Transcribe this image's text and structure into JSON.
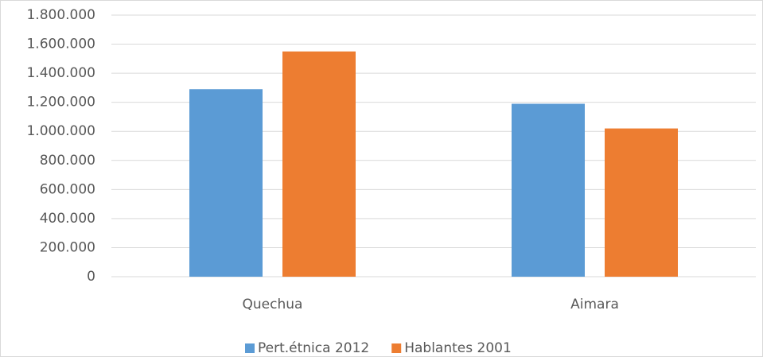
{
  "chart_data": {
    "type": "bar",
    "categories": [
      "Quechua",
      "Aimara"
    ],
    "series": [
      {
        "name": "Pert.étnica 2012",
        "color": "#5b9bd5",
        "values": [
          1290000,
          1190000
        ]
      },
      {
        "name": "Hablantes 2001",
        "color": "#ed7d31",
        "values": [
          1550000,
          1020000
        ]
      }
    ],
    "ylim": [
      0,
      1800000
    ],
    "yticks": [
      0,
      {
        "value": 200000,
        "label": "200.000"
      },
      {
        "value": 400000,
        "label": "400.000"
      },
      {
        "value": 600000,
        "label": "600.000"
      },
      {
        "value": 800000,
        "label": "800.000"
      },
      {
        "value": 1000000,
        "label": "1.000.000"
      },
      {
        "value": 1200000,
        "label": "1.200.000"
      },
      {
        "value": 1400000,
        "label": "1.400.000"
      },
      {
        "value": 1600000,
        "label": "1.600.000"
      },
      {
        "value": 1800000,
        "label": "1.800.000"
      }
    ],
    "grid": true,
    "legend": "bottom"
  }
}
